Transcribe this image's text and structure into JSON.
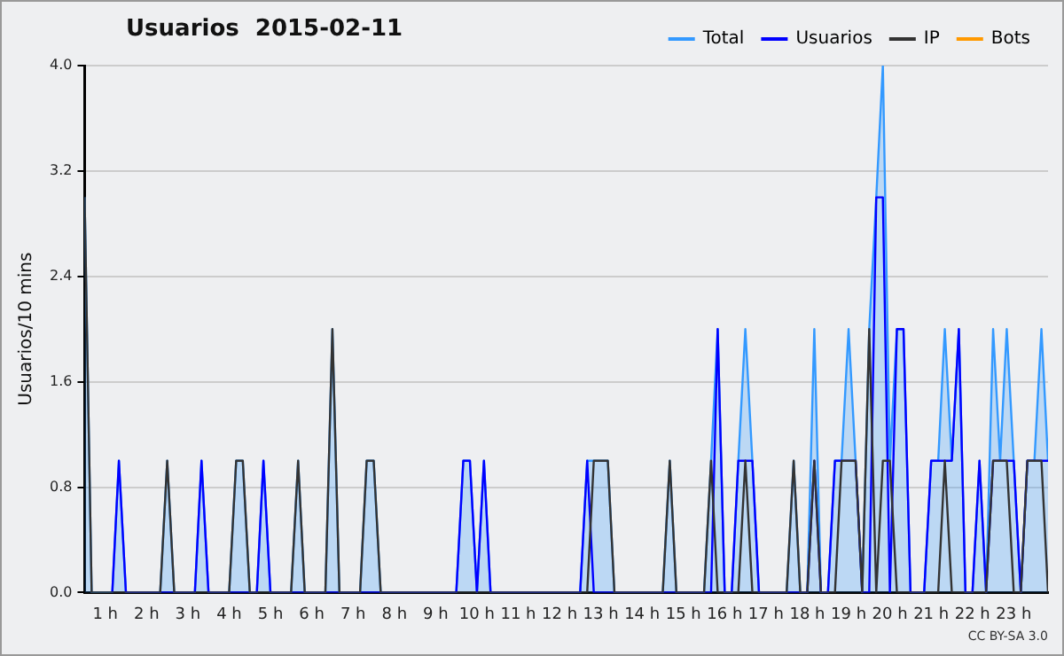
{
  "chart_data": {
    "type": "line",
    "title": "Usuarios  2015-02-11",
    "ylabel": "Usuarios/10 mins",
    "xlim": [
      0.5,
      23.83
    ],
    "xticks": [
      {
        "value": 1,
        "label": "1 h"
      },
      {
        "value": 2,
        "label": "2 h"
      },
      {
        "value": 3,
        "label": "3 h"
      },
      {
        "value": 4,
        "label": "4 h"
      },
      {
        "value": 5,
        "label": "5 h"
      },
      {
        "value": 6,
        "label": "6 h"
      },
      {
        "value": 7,
        "label": "7 h"
      },
      {
        "value": 8,
        "label": "8 h"
      },
      {
        "value": 9,
        "label": "9 h"
      },
      {
        "value": 10,
        "label": "10 h"
      },
      {
        "value": 11,
        "label": "11 h"
      },
      {
        "value": 12,
        "label": "12 h"
      },
      {
        "value": 13,
        "label": "13 h"
      },
      {
        "value": 14,
        "label": "14 h"
      },
      {
        "value": 15,
        "label": "15 h"
      },
      {
        "value": 16,
        "label": "16 h"
      },
      {
        "value": 17,
        "label": "17 h"
      },
      {
        "value": 18,
        "label": "18 h"
      },
      {
        "value": 19,
        "label": "19 h"
      },
      {
        "value": 20,
        "label": "20 h"
      },
      {
        "value": 21,
        "label": "21 h"
      },
      {
        "value": 22,
        "label": "22 h"
      },
      {
        "value": 23,
        "label": "23 h"
      }
    ],
    "ylim": [
      0,
      4
    ],
    "yticks": [
      {
        "value": 0,
        "label": "0.0"
      },
      0.8,
      1.6,
      2.4,
      3.2,
      {
        "value": 4,
        "label": "4.0"
      }
    ],
    "grid": "y",
    "legend": "top right",
    "marker": "none",
    "line_style": "solid",
    "annotations": [
      "CC BY-SA 3.0"
    ],
    "series": [
      {
        "name": "Total",
        "type": "area",
        "color": "#3399ff",
        "x": [
          0.5,
          0.67,
          1.17,
          1.33,
          1.5,
          2.33,
          2.5,
          2.67,
          3.17,
          3.33,
          3.5,
          4.0,
          4.17,
          4.33,
          4.5,
          4.67,
          4.83,
          5.0,
          5.5,
          5.67,
          5.83,
          6.33,
          6.5,
          6.67,
          7.17,
          7.33,
          7.5,
          7.67,
          9.5,
          9.67,
          9.83,
          10.0,
          10.17,
          10.33,
          12.5,
          12.67,
          12.83,
          13.0,
          13.17,
          13.33,
          14.5,
          14.67,
          14.83,
          15.5,
          15.67,
          15.83,
          16.0,
          16.17,
          16.33,
          16.5,
          16.67,
          16.83,
          17.5,
          17.67,
          17.83,
          18.0,
          18.17,
          18.33,
          18.5,
          18.67,
          18.83,
          19.0,
          19.17,
          19.33,
          19.5,
          19.67,
          19.83,
          20.0,
          20.17,
          20.33,
          20.5,
          20.83,
          21.0,
          21.17,
          21.33,
          21.5,
          21.67,
          21.83,
          22.0,
          22.17,
          22.33,
          22.5,
          22.67,
          22.83,
          23.0,
          23.17,
          23.33,
          23.5,
          23.67,
          23.83
        ],
        "values": [
          3,
          0,
          0,
          1,
          0,
          0,
          1,
          0,
          0,
          1,
          0,
          0,
          1,
          1,
          0,
          0,
          1,
          0,
          0,
          1,
          0,
          0,
          2,
          0,
          0,
          1,
          1,
          0,
          0,
          1,
          1,
          0,
          1,
          0,
          0,
          1,
          1,
          1,
          1,
          0,
          0,
          1,
          0,
          0,
          1,
          2,
          0,
          0,
          1,
          2,
          1,
          0,
          0,
          1,
          0,
          0,
          2,
          0,
          0,
          1,
          1,
          2,
          1,
          0,
          2,
          3,
          4,
          1,
          2,
          2,
          0,
          0,
          1,
          1,
          2,
          1,
          2,
          0,
          0,
          1,
          0,
          2,
          1,
          2,
          1,
          0,
          1,
          1,
          2,
          1
        ]
      },
      {
        "name": "Usuarios",
        "color": "#0000ff",
        "x": [
          1.17,
          1.33,
          1.5,
          3.17,
          3.33,
          3.5,
          4.67,
          4.83,
          5.0,
          9.5,
          9.67,
          9.83,
          10.0,
          10.17,
          10.33,
          12.5,
          12.67,
          12.83,
          15.67,
          15.83,
          16.0,
          16.17,
          16.33,
          16.5,
          16.67,
          16.83,
          18.0,
          18.17,
          18.33,
          18.5,
          18.67,
          18.83,
          19.0,
          19.17,
          19.33,
          19.5,
          19.67,
          19.83,
          20.0,
          20.17,
          20.33,
          20.5,
          20.83,
          21.0,
          21.17,
          21.33,
          21.5,
          21.67,
          21.83,
          22.0,
          22.17,
          22.33,
          22.5,
          22.67,
          22.83,
          23.0,
          23.17,
          23.33,
          23.5,
          23.67,
          23.83
        ],
        "values": [
          0,
          1,
          0,
          0,
          1,
          0,
          0,
          1,
          0,
          0,
          1,
          1,
          0,
          1,
          0,
          0,
          1,
          0,
          0,
          2,
          0,
          0,
          1,
          1,
          1,
          0,
          0,
          1,
          0,
          0,
          1,
          1,
          1,
          1,
          0,
          0,
          3,
          3,
          0,
          2,
          2,
          0,
          0,
          1,
          1,
          1,
          1,
          2,
          0,
          0,
          1,
          0,
          1,
          1,
          1,
          1,
          0,
          1,
          1,
          1,
          1
        ]
      },
      {
        "name": "IP",
        "color": "#333333",
        "x": [
          0.5,
          0.67,
          2.33,
          2.5,
          2.67,
          4.0,
          4.17,
          4.33,
          4.5,
          5.5,
          5.67,
          5.83,
          6.33,
          6.5,
          6.67,
          7.17,
          7.33,
          7.5,
          7.67,
          12.67,
          12.83,
          13.0,
          13.17,
          13.33,
          14.5,
          14.67,
          14.83,
          15.5,
          15.67,
          15.83,
          16.33,
          16.5,
          16.67,
          17.5,
          17.67,
          17.83,
          18.0,
          18.17,
          18.33,
          18.67,
          18.83,
          19.0,
          19.17,
          19.33,
          19.5,
          19.67,
          19.83,
          20.0,
          20.17,
          21.17,
          21.33,
          21.5,
          22.33,
          22.5,
          22.67,
          22.83,
          23.0,
          23.17,
          23.33,
          23.5,
          23.67,
          23.83
        ],
        "values": [
          3,
          0,
          0,
          1,
          0,
          0,
          1,
          1,
          0,
          0,
          1,
          0,
          0,
          2,
          0,
          0,
          1,
          1,
          0,
          0,
          1,
          1,
          1,
          0,
          0,
          1,
          0,
          0,
          1,
          0,
          0,
          1,
          0,
          0,
          1,
          0,
          0,
          1,
          0,
          0,
          1,
          1,
          1,
          0,
          2,
          0,
          1,
          1,
          0,
          0,
          1,
          0,
          0,
          1,
          1,
          1,
          0,
          0,
          1,
          1,
          1,
          0
        ]
      },
      {
        "name": "Bots",
        "color": "#ff9900"
      }
    ]
  }
}
